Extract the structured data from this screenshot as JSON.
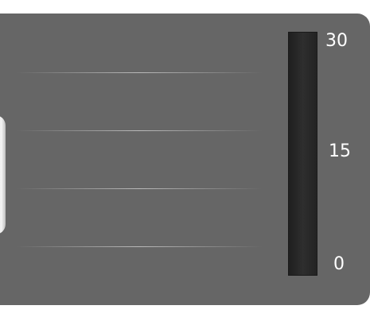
{
  "meter": {
    "max_label": "30",
    "mid_label": "15",
    "min_label": "0",
    "min": 0,
    "max": 30,
    "value": 0
  },
  "colors": {
    "panel": "#666666",
    "track": "#2a2a2a",
    "fill": "#ffcc33",
    "text": "#ffffff"
  }
}
